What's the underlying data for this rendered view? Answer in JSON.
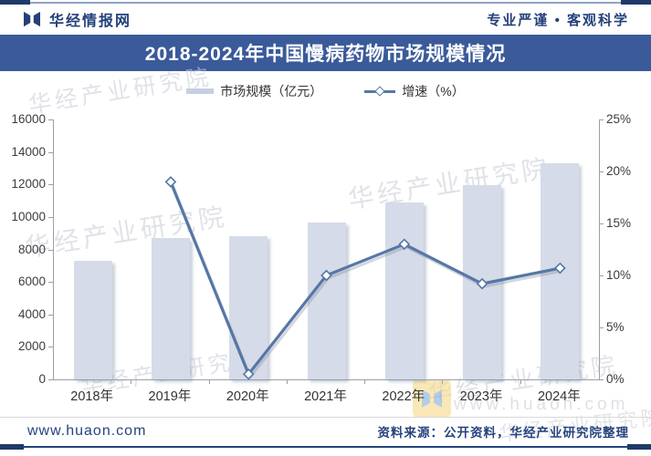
{
  "header": {
    "brand": "华经情报网",
    "slogan": "专业严谨 • 客观科学"
  },
  "title": "2018-2024年中国慢病药物市场规模情况",
  "legend": {
    "bar_label": "市场规模（亿元）",
    "line_label": "增速（%）"
  },
  "chart_data": {
    "type": "bar",
    "title": "2018-2024年中国慢病药物市场规模情况",
    "categories": [
      "2018年",
      "2019年",
      "2020年",
      "2021年",
      "2022年",
      "2023年",
      "2024年"
    ],
    "series": [
      {
        "name": "市场规模（亿元）",
        "type": "bar",
        "axis": "left",
        "values": [
          7300,
          8700,
          8800,
          9650,
          10900,
          11950,
          13300
        ]
      },
      {
        "name": "增速（%）",
        "type": "line",
        "axis": "right",
        "values": [
          null,
          19.0,
          0.5,
          10.0,
          13.0,
          9.2,
          10.7
        ]
      }
    ],
    "left_axis": {
      "min": 0,
      "max": 16000,
      "step": 2000,
      "suffix": ""
    },
    "right_axis": {
      "min": 0,
      "max": 25,
      "step": 5,
      "suffix": "%"
    },
    "grid": false,
    "legend_position": "top"
  },
  "watermark": {
    "text": "华经产业研究院",
    "site": "www.huaon.com"
  },
  "footer": {
    "site": "www.huaon.com",
    "source": "资料来源：公开资料，华经产业研究院整理"
  },
  "colors": {
    "title_bar": "#3a5a9a",
    "bar_fill": "#d5dbe8",
    "line": "#5577a6",
    "marker_fill": "#ffffff",
    "navy_text": "#24407a",
    "axis": "#9aa0a8"
  }
}
